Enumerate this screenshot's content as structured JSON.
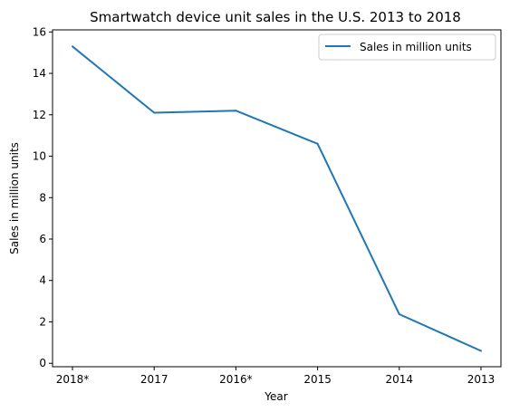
{
  "chart_data": {
    "type": "line",
    "title": "Smartwatch device unit sales in the U.S. 2013 to 2018",
    "xlabel": "Year",
    "ylabel": "Sales in million units",
    "categories": [
      "2018*",
      "2017",
      "2016*",
      "2015",
      "2014",
      "2013"
    ],
    "series": [
      {
        "name": "Sales in million units",
        "values": [
          15.3,
          12.1,
          12.2,
          10.6,
          2.37,
          0.6
        ],
        "color": "#1f77b4"
      }
    ],
    "ylim": [
      -0.165,
      16.1
    ],
    "yticks": [
      0,
      2,
      4,
      6,
      8,
      10,
      12,
      14,
      16
    ],
    "grid": false,
    "legend": "upper right"
  }
}
